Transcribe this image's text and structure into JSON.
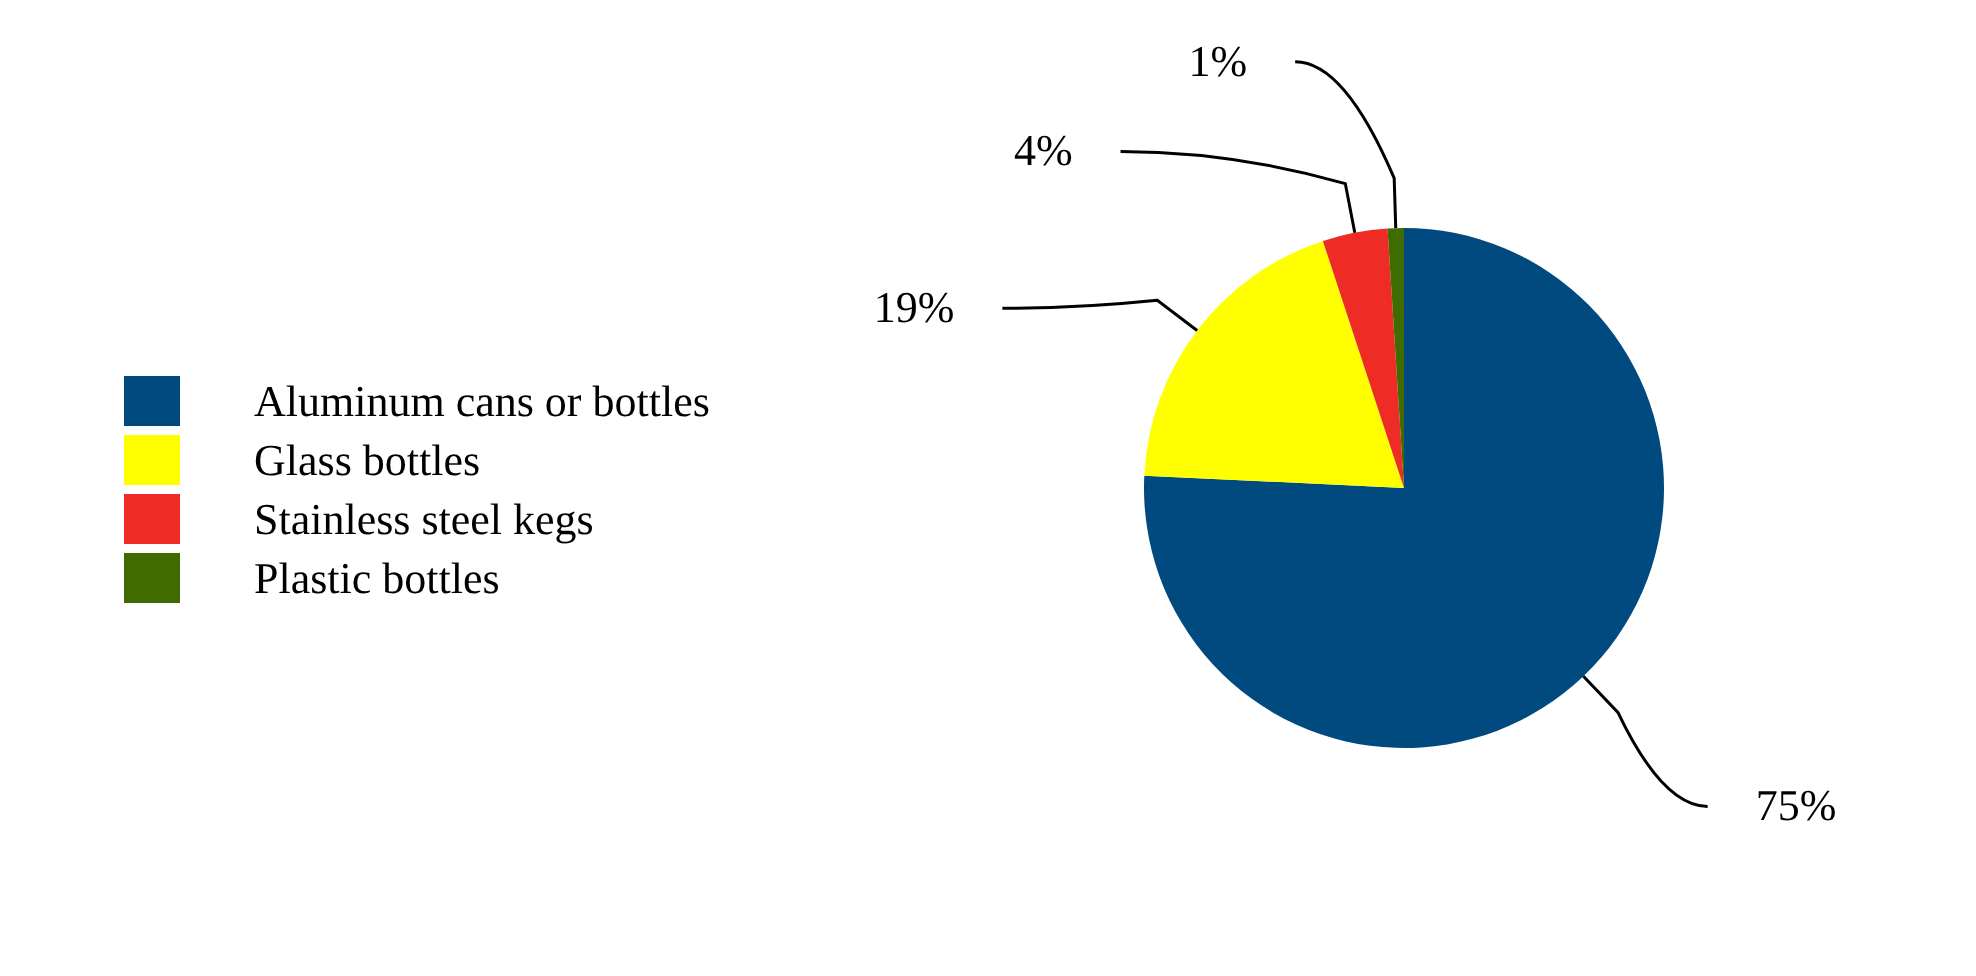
{
  "chart_data": {
    "type": "pie",
    "categories": [
      "Aluminum cans or bottles",
      "Glass bottles",
      "Stainless steel kegs",
      "Plastic bottles"
    ],
    "values": [
      75,
      19,
      4,
      1
    ],
    "colors": [
      "#004a7f",
      "#ffff00",
      "#ee2b24",
      "#3f6b00"
    ],
    "value_labels": [
      "75%",
      "19%",
      "4%",
      "1%"
    ],
    "legend": "left"
  }
}
